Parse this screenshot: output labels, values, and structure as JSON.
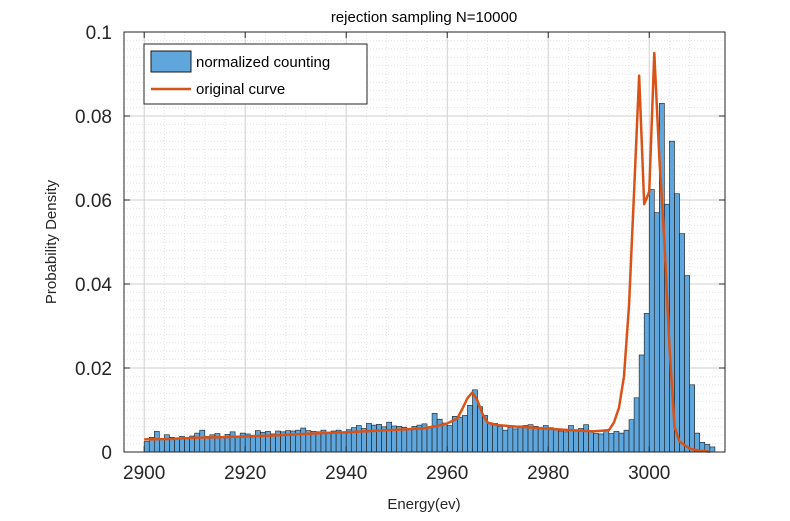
{
  "chart_data": {
    "type": "bar",
    "title": "rejection sampling N=10000",
    "xlabel": "Energy(ev)",
    "ylabel": "Probability Density",
    "xlim": [
      2896,
      2915.5
    ],
    "xlim_full": [
      2896,
      3015
    ],
    "ylim": [
      0,
      0.1
    ],
    "xticks": [
      "2900",
      "2920",
      "2940",
      "2960",
      "2980",
      "3000"
    ],
    "yticks": [
      "0",
      "0.02",
      "0.04",
      "0.06",
      "0.08",
      "0.1"
    ],
    "grid": true,
    "minor_grid": true,
    "legend_position": "top-left",
    "colors": {
      "bars": "#5ea6dc",
      "bar_edge": "#1a1a1a",
      "curve": "#d95319",
      "grid": "#cfcfcf",
      "axis": "#262626"
    },
    "series": [
      {
        "name": "normalized counting",
        "kind": "histogram",
        "bin_width": 1,
        "x_start": 2900,
        "values": [
          0.0025,
          0.0035,
          0.0049,
          0.0032,
          0.0041,
          0.0035,
          0.0031,
          0.0037,
          0.0034,
          0.0038,
          0.0045,
          0.0052,
          0.0037,
          0.0041,
          0.0044,
          0.0035,
          0.0042,
          0.0048,
          0.0038,
          0.0045,
          0.0043,
          0.004,
          0.0051,
          0.0047,
          0.0049,
          0.0043,
          0.005,
          0.0048,
          0.0051,
          0.005,
          0.0052,
          0.0057,
          0.0051,
          0.0049,
          0.0048,
          0.0052,
          0.0047,
          0.005,
          0.0052,
          0.0046,
          0.0053,
          0.0058,
          0.0063,
          0.0056,
          0.0068,
          0.0064,
          0.0066,
          0.006,
          0.0071,
          0.0062,
          0.0061,
          0.0059,
          0.0055,
          0.0061,
          0.0064,
          0.0067,
          0.0058,
          0.0092,
          0.0078,
          0.0069,
          0.0063,
          0.0085,
          0.0083,
          0.0087,
          0.0111,
          0.0148,
          0.0108,
          0.0087,
          0.0069,
          0.0068,
          0.0061,
          0.0052,
          0.0059,
          0.0055,
          0.0062,
          0.0063,
          0.0065,
          0.0061,
          0.0055,
          0.0063,
          0.0058,
          0.0055,
          0.005,
          0.0048,
          0.0063,
          0.0053,
          0.0056,
          0.0065,
          0.005,
          0.0044,
          0.0043,
          0.0051,
          0.0044,
          0.0049,
          0.0045,
          0.0052,
          0.0077,
          0.0129,
          0.0231,
          0.033,
          0.0625,
          0.057,
          0.083,
          0.059,
          0.074,
          0.0615,
          0.052,
          0.042,
          0.016,
          0.0045,
          0.0023,
          0.0018,
          0.0012
        ]
      },
      {
        "name": "original curve",
        "kind": "line",
        "points": [
          [
            2900,
            0.003
          ],
          [
            2905,
            0.0031
          ],
          [
            2910,
            0.0034
          ],
          [
            2915,
            0.0035
          ],
          [
            2920,
            0.0037
          ],
          [
            2925,
            0.0039
          ],
          [
            2930,
            0.0042
          ],
          [
            2935,
            0.0045
          ],
          [
            2940,
            0.0047
          ],
          [
            2945,
            0.005
          ],
          [
            2950,
            0.0053
          ],
          [
            2955,
            0.0056
          ],
          [
            2958,
            0.0062
          ],
          [
            2960,
            0.0068
          ],
          [
            2962,
            0.008
          ],
          [
            2963,
            0.0103
          ],
          [
            2964,
            0.0128
          ],
          [
            2965,
            0.0142
          ],
          [
            2966,
            0.0122
          ],
          [
            2967,
            0.009
          ],
          [
            2968,
            0.007
          ],
          [
            2970,
            0.0064
          ],
          [
            2974,
            0.006
          ],
          [
            2978,
            0.0057
          ],
          [
            2982,
            0.0054
          ],
          [
            2986,
            0.0051
          ],
          [
            2989,
            0.0049
          ],
          [
            2992,
            0.0052
          ],
          [
            2993,
            0.007
          ],
          [
            2994,
            0.0105
          ],
          [
            2995,
            0.018
          ],
          [
            2996,
            0.035
          ],
          [
            2997,
            0.062
          ],
          [
            2998,
            0.0896
          ],
          [
            2999,
            0.059
          ],
          [
            3000,
            0.062
          ],
          [
            3001,
            0.095
          ],
          [
            3002,
            0.07
          ],
          [
            3003,
            0.05
          ],
          [
            3004,
            0.025
          ],
          [
            3005,
            0.006
          ],
          [
            3006,
            0.0025
          ],
          [
            3008,
            0.0008
          ],
          [
            3010,
            0.0003
          ],
          [
            3012,
            0.0001
          ]
        ]
      }
    ]
  }
}
